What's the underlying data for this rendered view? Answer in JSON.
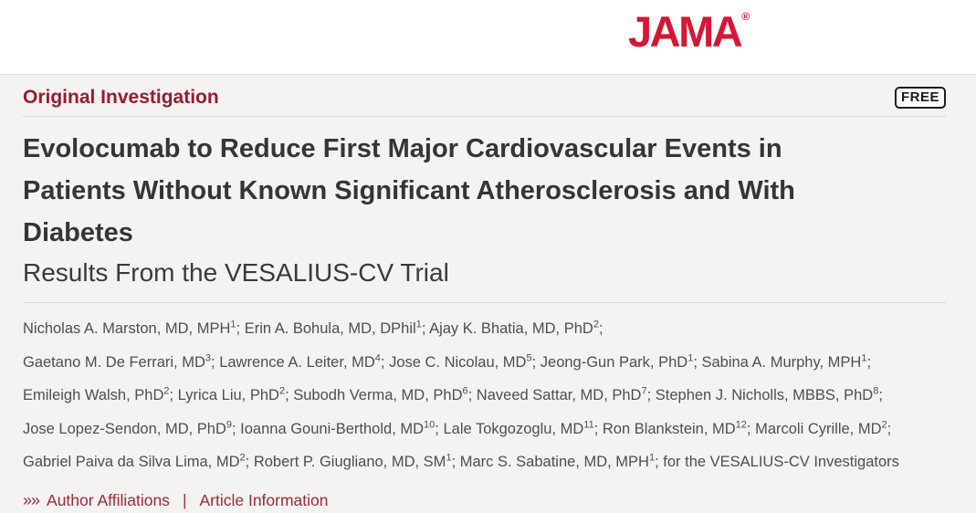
{
  "brand": {
    "logo_text": "JAMA",
    "registered_mark": "®",
    "logo_color": "#D71635"
  },
  "article_header": {
    "kicker": "Original Investigation",
    "access_badge": "FREE",
    "kicker_color": "#9A1B2F"
  },
  "title": {
    "lines": [
      "Evolocumab to Reduce First Major Cardiovascular Events in",
      "Patients Without Known Significant Atherosclerosis and With",
      "Diabetes"
    ],
    "subtitle": "Results From the VESALIUS-CV Trial"
  },
  "authors": {
    "lines": [
      [
        {
          "name": "Nicholas A. Marston, MD, MPH",
          "sup": "1"
        },
        {
          "name": "Erin A. Bohula, MD, DPhil",
          "sup": "1"
        },
        {
          "name": "Ajay K. Bhatia, MD, PhD",
          "sup": "2"
        }
      ],
      [
        {
          "name": "Gaetano M. De Ferrari, MD",
          "sup": "3"
        },
        {
          "name": "Lawrence A. Leiter, MD",
          "sup": "4"
        },
        {
          "name": "Jose C. Nicolau, MD",
          "sup": "5"
        },
        {
          "name": "Jeong-Gun Park, PhD",
          "sup": "1"
        },
        {
          "name": "Sabina A. Murphy, MPH",
          "sup": "1"
        }
      ],
      [
        {
          "name": "Emileigh Walsh, PhD",
          "sup": "2"
        },
        {
          "name": "Lyrica Liu, PhD",
          "sup": "2"
        },
        {
          "name": "Subodh Verma, MD, PhD",
          "sup": "6"
        },
        {
          "name": "Naveed Sattar, MD, PhD",
          "sup": "7"
        },
        {
          "name": "Stephen J. Nicholls, MBBS, PhD",
          "sup": "8"
        }
      ],
      [
        {
          "name": "Jose Lopez-Sendon, MD, PhD",
          "sup": "9"
        },
        {
          "name": "Ioanna Gouni-Berthold, MD",
          "sup": "10"
        },
        {
          "name": "Lale Tokgozoglu, MD",
          "sup": "11"
        },
        {
          "name": "Ron Blankstein, MD",
          "sup": "12"
        },
        {
          "name": "Marcoli Cyrille, MD",
          "sup": "2"
        }
      ],
      [
        {
          "name": "Gabriel Paiva da Silva Lima, MD",
          "sup": "2"
        },
        {
          "name": "Robert P. Giugliano, MD, SM",
          "sup": "1"
        },
        {
          "name": "Marc S. Sabatine, MD, MPH",
          "sup": "1"
        }
      ]
    ],
    "trailing": "for the VESALIUS-CV Investigators"
  },
  "links": {
    "chevron_icon": "»",
    "author_affiliations": "Author Affiliations",
    "separator": "|",
    "article_information": "Article Information",
    "link_color": "#9E2B36"
  }
}
